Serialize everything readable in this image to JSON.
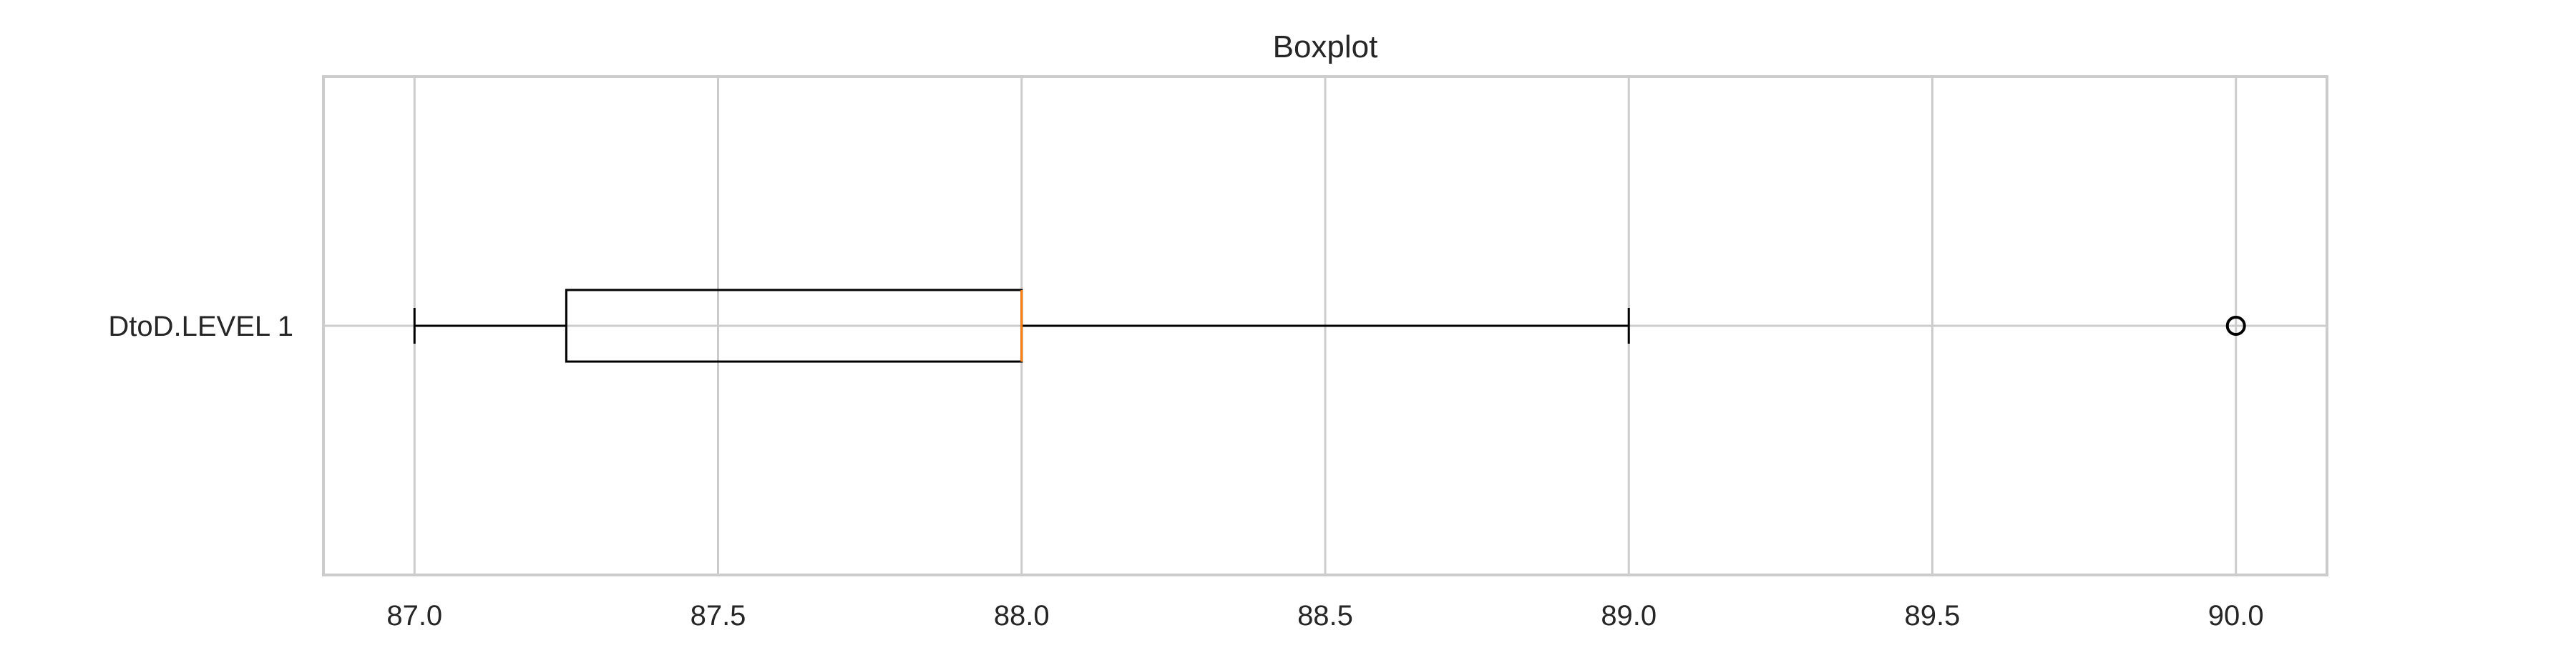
{
  "chart_data": {
    "type": "boxplot",
    "orientation": "horizontal",
    "title": "Boxplot",
    "xlabel": "",
    "ylabel": "",
    "xlim": [
      86.85,
      90.15
    ],
    "x_ticks": [
      87.0,
      87.5,
      88.0,
      88.5,
      89.0,
      89.5,
      90.0
    ],
    "x_tick_labels": [
      "87.0",
      "87.5",
      "88.0",
      "88.5",
      "89.0",
      "89.5",
      "90.0"
    ],
    "grid": true,
    "series": [
      {
        "name": "DtoD.LEVEL 1",
        "whisker_low": 87.0,
        "q1": 87.25,
        "median": 88.0,
        "q3": 88.0,
        "whisker_high": 89.0,
        "outliers": [
          90.0
        ]
      }
    ],
    "colors": {
      "box": "#000000",
      "median": "#ff7f0e",
      "grid": "#cccccc",
      "frame": "#cccccc"
    }
  }
}
